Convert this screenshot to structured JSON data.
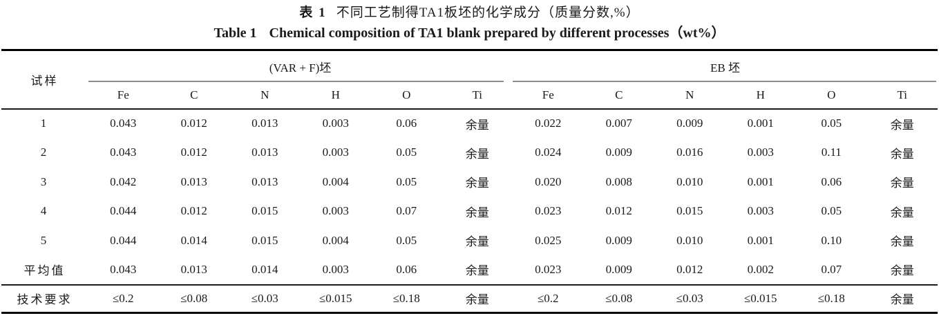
{
  "title_cn": {
    "prefix": "表 1",
    "text": "不同工艺制得TA1板坯的化学成分（质量分数,%）"
  },
  "title_en": {
    "prefix": "Table 1",
    "text": "Chemical composition of TA1 blank prepared by different processes（wt%）"
  },
  "table": {
    "sample_header": "试样",
    "group_headers": [
      {
        "label": "(VAR + F)坯"
      },
      {
        "label": "EB 坯"
      }
    ],
    "element_headers": [
      "Fe",
      "C",
      "N",
      "H",
      "O",
      "Ti"
    ],
    "rows": [
      {
        "label": "1",
        "values": [
          "0.043",
          "0.012",
          "0.013",
          "0.003",
          "0.06",
          "余量",
          "0.022",
          "0.007",
          "0.009",
          "0.001",
          "0.05",
          "余量"
        ]
      },
      {
        "label": "2",
        "values": [
          "0.043",
          "0.012",
          "0.013",
          "0.003",
          "0.05",
          "余量",
          "0.024",
          "0.009",
          "0.016",
          "0.003",
          "0.11",
          "余量"
        ]
      },
      {
        "label": "3",
        "values": [
          "0.042",
          "0.013",
          "0.013",
          "0.004",
          "0.05",
          "余量",
          "0.020",
          "0.008",
          "0.010",
          "0.001",
          "0.06",
          "余量"
        ]
      },
      {
        "label": "4",
        "values": [
          "0.044",
          "0.012",
          "0.015",
          "0.003",
          "0.07",
          "余量",
          "0.023",
          "0.012",
          "0.015",
          "0.003",
          "0.05",
          "余量"
        ]
      },
      {
        "label": "5",
        "values": [
          "0.044",
          "0.014",
          "0.015",
          "0.004",
          "0.05",
          "余量",
          "0.025",
          "0.009",
          "0.010",
          "0.001",
          "0.10",
          "余量"
        ]
      },
      {
        "label": "平均值",
        "values": [
          "0.043",
          "0.013",
          "0.014",
          "0.003",
          "0.06",
          "余量",
          "0.023",
          "0.009",
          "0.012",
          "0.002",
          "0.07",
          "余量"
        ]
      },
      {
        "label": "技术要求",
        "divider_above": true,
        "values": [
          "≤0.2",
          "≤0.08",
          "≤0.03",
          "≤0.015",
          "≤0.18",
          "余量",
          "≤0.2",
          "≤0.08",
          "≤0.03",
          "≤0.015",
          "≤0.18",
          "余量"
        ]
      }
    ]
  },
  "colors": {
    "rule_heavy": "#000000",
    "rule_light": "#1a1a1a",
    "spanner_rule": "#8c8c8c",
    "text": "#1a1a1a",
    "background": "#ffffff"
  }
}
